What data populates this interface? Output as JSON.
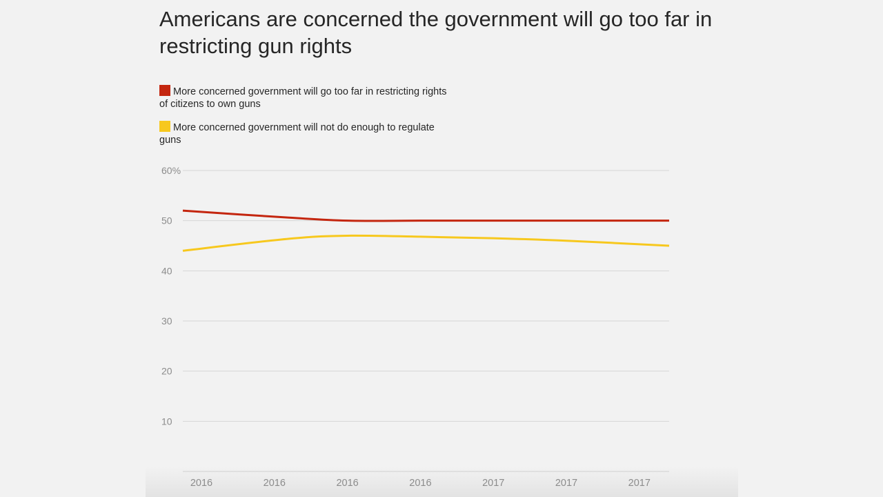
{
  "chart_data": {
    "type": "line",
    "title": "Americans are concerned the government will go too far in restricting gun rights",
    "xlabel": "",
    "ylabel": "",
    "ylim": [
      0,
      60
    ],
    "y_ticks": [
      10,
      20,
      30,
      40,
      50,
      60
    ],
    "y_tick_labels": [
      "10",
      "20",
      "30",
      "40",
      "50",
      "60%"
    ],
    "categories": [
      "2016",
      "2016",
      "2016",
      "2016",
      "2017",
      "2017",
      "2017"
    ],
    "grid": true,
    "legend_position": "top-left",
    "series": [
      {
        "name": "More concerned government will go too far in restricting rights of citizens to own guns",
        "color": "#c4260f",
        "points": [
          [
            0,
            52
          ],
          [
            1.2,
            50.6
          ],
          [
            2,
            50
          ],
          [
            3,
            50
          ],
          [
            4,
            50
          ],
          [
            5,
            50
          ],
          [
            6.5,
            50
          ]
        ]
      },
      {
        "name": "More concerned government will not do enough to regulate guns",
        "color": "#f7c81e",
        "points": [
          [
            0,
            44
          ],
          [
            1.2,
            46.4
          ],
          [
            2,
            47
          ],
          [
            3,
            46.8
          ],
          [
            4,
            46.5
          ],
          [
            5,
            46
          ],
          [
            6.5,
            45
          ]
        ]
      }
    ]
  }
}
